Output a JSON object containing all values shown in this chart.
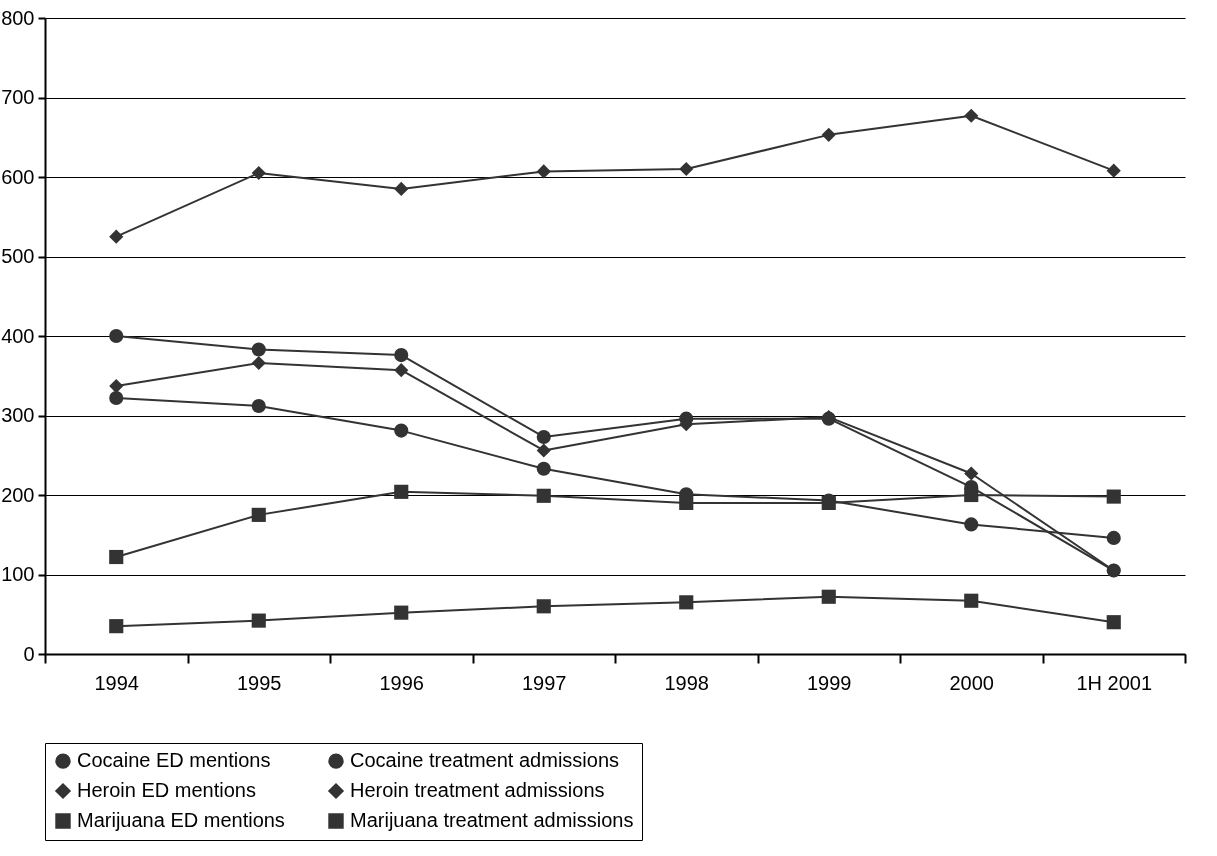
{
  "chart_data": {
    "type": "line",
    "categories": [
      "1994",
      "1995",
      "1996",
      "1997",
      "1998",
      "1999",
      "2000",
      "1H 2001"
    ],
    "ylim": [
      0,
      800
    ],
    "yticks": [
      0,
      100,
      200,
      300,
      400,
      500,
      600,
      700,
      800
    ],
    "grid": "y",
    "legend": "bottom",
    "series": [
      {
        "name": "Cocaine ED mentions",
        "color": "#333333",
        "marker": "circle",
        "values": [
          400,
          383,
          376,
          273,
          296,
          296,
          210,
          105
        ]
      },
      {
        "name": "Cocaine treatment admissions",
        "color": "#333333",
        "marker": "circle",
        "values": [
          322,
          312,
          281,
          233,
          201,
          193,
          163,
          146
        ]
      },
      {
        "name": "Heroin ED mentions",
        "color": "#333333",
        "marker": "diamond",
        "values": [
          337,
          366,
          357,
          256,
          289,
          298,
          227,
          105
        ]
      },
      {
        "name": "Heroin treatment admissions",
        "color": "#333333",
        "marker": "diamond",
        "values": [
          525,
          605,
          585,
          607,
          610,
          653,
          677,
          608
        ]
      },
      {
        "name": "Marijuana ED mentions",
        "color": "#333333",
        "marker": "square",
        "values": [
          35,
          42,
          52,
          60,
          65,
          72,
          67,
          40
        ]
      },
      {
        "name": "Marijuana treatment admissions",
        "color": "#333333",
        "marker": "square",
        "values": [
          122,
          175,
          204,
          199,
          190,
          190,
          200,
          198
        ]
      }
    ]
  }
}
